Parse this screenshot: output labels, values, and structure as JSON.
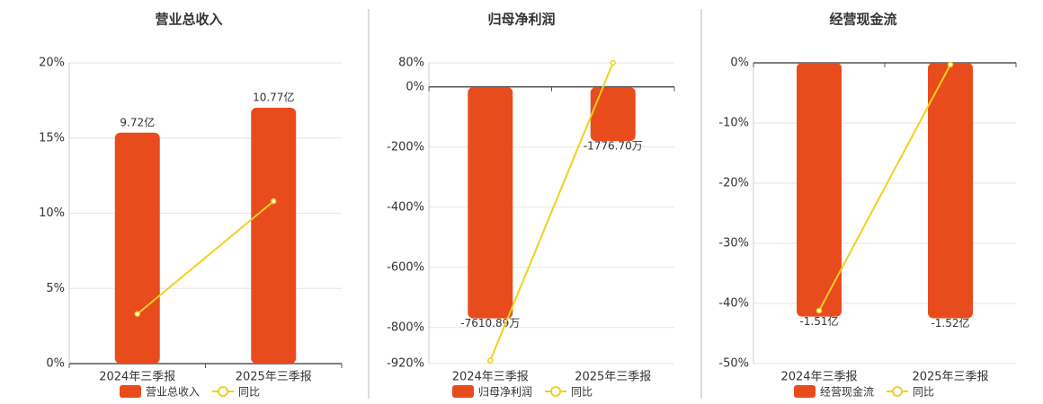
{
  "chart_data": [
    {
      "type": "combo",
      "title": "营业总收入",
      "categories": [
        "2024年三季报",
        "2025年三季报"
      ],
      "ylim": [
        0,
        20
      ],
      "yticks": [
        {
          "value": 0,
          "label": "0%"
        },
        {
          "value": 5,
          "label": "5%"
        },
        {
          "value": 10,
          "label": "10%"
        },
        {
          "value": 15,
          "label": "15%"
        },
        {
          "value": 20,
          "label": "20%"
        }
      ],
      "y2lim": [
        0,
        12.66
      ],
      "grid": true,
      "series": [
        {
          "name": "营业总收入",
          "type": "bar",
          "axis": "y2",
          "color": "#e84c1c",
          "values": [
            9.72,
            10.77
          ],
          "value_labels": [
            "9.72亿",
            "10.77亿"
          ]
        },
        {
          "name": "同比",
          "type": "line",
          "color": "#f2d01e",
          "values": [
            3.3,
            10.8
          ]
        }
      ]
    },
    {
      "type": "combo",
      "title": "归母净利润",
      "categories": [
        "2024年三季报",
        "2025年三季报"
      ],
      "ylim": [
        -920,
        80
      ],
      "yticks": [
        {
          "value": 80,
          "label": "80%"
        },
        {
          "value": 0,
          "label": "0%"
        },
        {
          "value": -200,
          "label": "-200%"
        },
        {
          "value": -400,
          "label": "-400%"
        },
        {
          "value": -600,
          "label": "-600%"
        },
        {
          "value": -800,
          "label": "-800%"
        },
        {
          "value": -920,
          "label": "-920%"
        }
      ],
      "y2lim": [
        -9100,
        800
      ],
      "grid": true,
      "series": [
        {
          "name": "归母净利润",
          "type": "bar",
          "axis": "y2",
          "color": "#e84c1c",
          "values": [
            -7610.89,
            -1776.7
          ],
          "value_labels": [
            "-7610.89万",
            "-1776.70万"
          ]
        },
        {
          "name": "同比",
          "type": "line",
          "color": "#f2d01e",
          "values": [
            -910,
            80
          ]
        }
      ]
    },
    {
      "type": "combo",
      "title": "经营现金流",
      "categories": [
        "2024年三季报",
        "2025年三季报"
      ],
      "ylim": [
        -50,
        0
      ],
      "yticks": [
        {
          "value": 0,
          "label": "0%"
        },
        {
          "value": -10,
          "label": "-10%"
        },
        {
          "value": -20,
          "label": "-20%"
        },
        {
          "value": -30,
          "label": "-30%"
        },
        {
          "value": -40,
          "label": "-40%"
        },
        {
          "value": -50,
          "label": "-50%"
        }
      ],
      "y2lim": [
        -1.79,
        0
      ],
      "grid": true,
      "series": [
        {
          "name": "经营现金流",
          "type": "bar",
          "axis": "y2",
          "color": "#e84c1c",
          "values": [
            -1.51,
            -1.52
          ],
          "value_labels": [
            "-1.51亿",
            "-1.52亿"
          ]
        },
        {
          "name": "同比",
          "type": "line",
          "color": "#f2d01e",
          "values": [
            -41.2,
            -0.3
          ]
        }
      ]
    }
  ]
}
